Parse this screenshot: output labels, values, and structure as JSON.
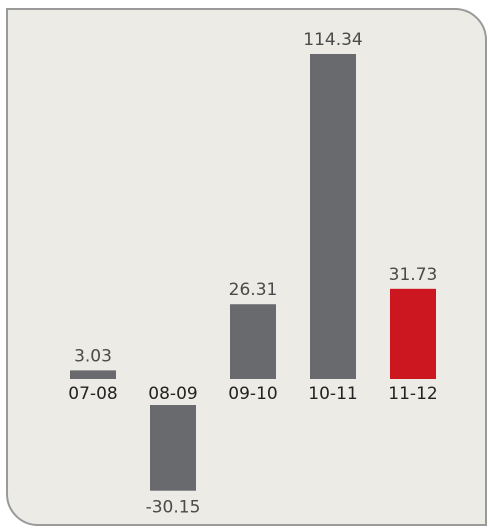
{
  "chart_data": {
    "type": "bar",
    "categories": [
      "07-08",
      "08-09",
      "09-10",
      "10-11",
      "11-12"
    ],
    "values": [
      3.03,
      -30.15,
      26.31,
      114.34,
      31.73
    ],
    "value_labels": [
      "3.03",
      "-30.15",
      "26.31",
      "114.34",
      "31.73"
    ],
    "title": "",
    "xlabel": "",
    "ylabel": "",
    "grid": false,
    "legend": "none",
    "colors": {
      "default_bar": "#696a6e",
      "highlight_bar": "#cc1720",
      "value_label": "#4a4a4a",
      "category_label": "#222222"
    },
    "highlight_index": 4
  }
}
